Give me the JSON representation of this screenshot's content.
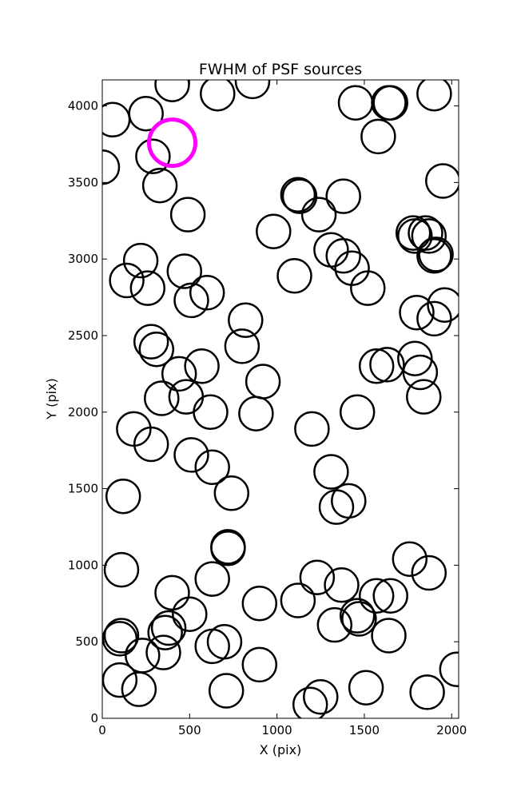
{
  "chart_data": {
    "type": "scatter",
    "title": "FWHM of PSF sources",
    "xlabel": "X (pix)",
    "ylabel": "Y (pix)",
    "xlim": [
      0,
      2040
    ],
    "ylim": [
      0,
      4170
    ],
    "xticks": [
      0,
      500,
      1000,
      1500,
      2000
    ],
    "yticks": [
      0,
      500,
      1000,
      1500,
      2000,
      2500,
      3000,
      3500,
      4000
    ],
    "grid": false,
    "marker": "open circle",
    "marker_color": "#000000",
    "highlight_color": "#ff00ff",
    "series": [
      {
        "points": [
          [
            60,
            3910
          ],
          [
            250,
            3950
          ],
          [
            400,
            4140
          ],
          [
            660,
            4080
          ],
          [
            860,
            4160
          ],
          [
            0,
            3600
          ],
          [
            290,
            3670
          ],
          [
            330,
            3480
          ],
          [
            490,
            3290
          ],
          [
            220,
            2990
          ],
          [
            140,
            2860
          ],
          [
            260,
            2810
          ],
          [
            470,
            2920
          ],
          [
            510,
            2730
          ],
          [
            600,
            2780
          ],
          [
            280,
            2460
          ],
          [
            310,
            2410
          ],
          [
            440,
            2250
          ],
          [
            570,
            2300
          ],
          [
            340,
            2090
          ],
          [
            480,
            2100
          ],
          [
            620,
            2000
          ],
          [
            820,
            2600
          ],
          [
            800,
            2430
          ],
          [
            920,
            2200
          ],
          [
            880,
            1990
          ],
          [
            180,
            1890
          ],
          [
            280,
            1790
          ],
          [
            510,
            1720
          ],
          [
            630,
            1640
          ],
          [
            740,
            1470
          ],
          [
            120,
            1450
          ],
          [
            110,
            970
          ],
          [
            720,
            1110
          ],
          [
            720,
            1120
          ],
          [
            630,
            910
          ],
          [
            400,
            820
          ],
          [
            500,
            680
          ],
          [
            380,
            590
          ],
          [
            360,
            560
          ],
          [
            350,
            430
          ],
          [
            230,
            410
          ],
          [
            110,
            540
          ],
          [
            100,
            520
          ],
          [
            100,
            250
          ],
          [
            210,
            190
          ],
          [
            630,
            470
          ],
          [
            700,
            500
          ],
          [
            710,
            180
          ],
          [
            900,
            750
          ],
          [
            900,
            350
          ],
          [
            1120,
            770
          ],
          [
            1230,
            920
          ],
          [
            1370,
            870
          ],
          [
            1330,
            610
          ],
          [
            1460,
            670
          ],
          [
            1470,
            650
          ],
          [
            1570,
            800
          ],
          [
            1650,
            800
          ],
          [
            1640,
            540
          ],
          [
            1760,
            1040
          ],
          [
            1870,
            950
          ],
          [
            1860,
            170
          ],
          [
            1510,
            200
          ],
          [
            1250,
            140
          ],
          [
            1190,
            90
          ],
          [
            2030,
            320
          ],
          [
            980,
            3180
          ],
          [
            1130,
            3410
          ],
          [
            1120,
            3420
          ],
          [
            1240,
            3290
          ],
          [
            1380,
            3410
          ],
          [
            1310,
            3060
          ],
          [
            1380,
            3020
          ],
          [
            1430,
            2940
          ],
          [
            1520,
            2810
          ],
          [
            1100,
            2890
          ],
          [
            1570,
            2300
          ],
          [
            1630,
            2310
          ],
          [
            1460,
            2000
          ],
          [
            1200,
            1890
          ],
          [
            1310,
            1610
          ],
          [
            1340,
            1380
          ],
          [
            1410,
            1420
          ],
          [
            1450,
            4020
          ],
          [
            1640,
            4020
          ],
          [
            1650,
            4020
          ],
          [
            1580,
            3800
          ],
          [
            1900,
            4080
          ],
          [
            1950,
            3510
          ],
          [
            1780,
            3170
          ],
          [
            1790,
            3150
          ],
          [
            1850,
            3170
          ],
          [
            1870,
            3150
          ],
          [
            1910,
            3030
          ],
          [
            1900,
            3020
          ],
          [
            1800,
            2650
          ],
          [
            1900,
            2610
          ],
          [
            1960,
            2700
          ],
          [
            1790,
            2350
          ],
          [
            1820,
            2260
          ],
          [
            1840,
            2100
          ]
        ]
      }
    ],
    "highlight": {
      "x": 400,
      "y": 3760
    }
  }
}
